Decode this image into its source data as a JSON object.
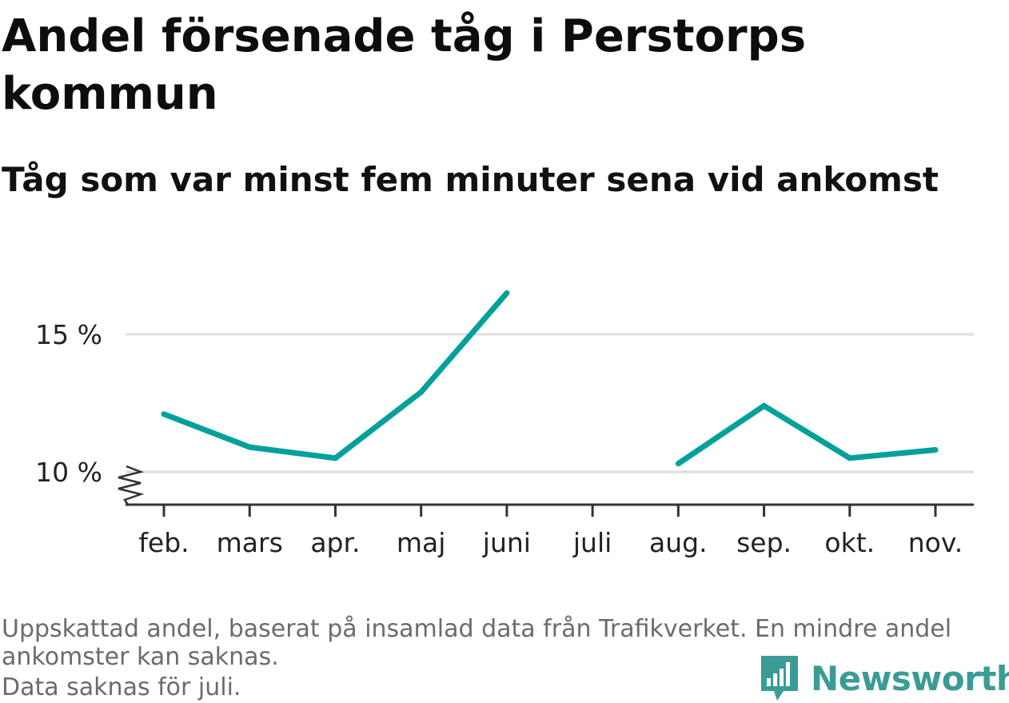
{
  "header": {
    "title": "Andel försenade tåg i Perstorps kommun",
    "subtitle": "Tåg som var minst fem minuter sena vid ankomst"
  },
  "chart_data": {
    "type": "line",
    "title": "Andel försenade tåg i Perstorps kommun",
    "subtitle": "Tåg som var minst fem minuter sena vid ankomst",
    "xlabel": "",
    "ylabel": "",
    "categories": [
      "feb.",
      "mars",
      "apr.",
      "maj",
      "juni",
      "juli",
      "aug.",
      "sep.",
      "okt.",
      "nov."
    ],
    "series": [
      {
        "values": [
          12.1,
          10.9,
          10.5,
          12.9,
          16.5,
          null,
          10.3,
          12.4,
          10.5,
          10.8
        ]
      }
    ],
    "y_ticks": [
      10,
      15
    ],
    "y_tick_labels": [
      "10 %",
      "15 %"
    ],
    "ylim": [
      10,
      17
    ],
    "y_axis_break": true,
    "grid": true,
    "line_color": "#00a19a"
  },
  "footer": {
    "note_line1": "Uppskattad andel, baserat på insamlad data från Trafikverket. En mindre andel",
    "note_line2": "ankomster kan saknas.",
    "note_line3": "Data saknas för juli.",
    "brand": "Newsworthy",
    "brand_color": "#3a9c94",
    "brand_icon": "bar-chart-speech-bubble-icon"
  }
}
